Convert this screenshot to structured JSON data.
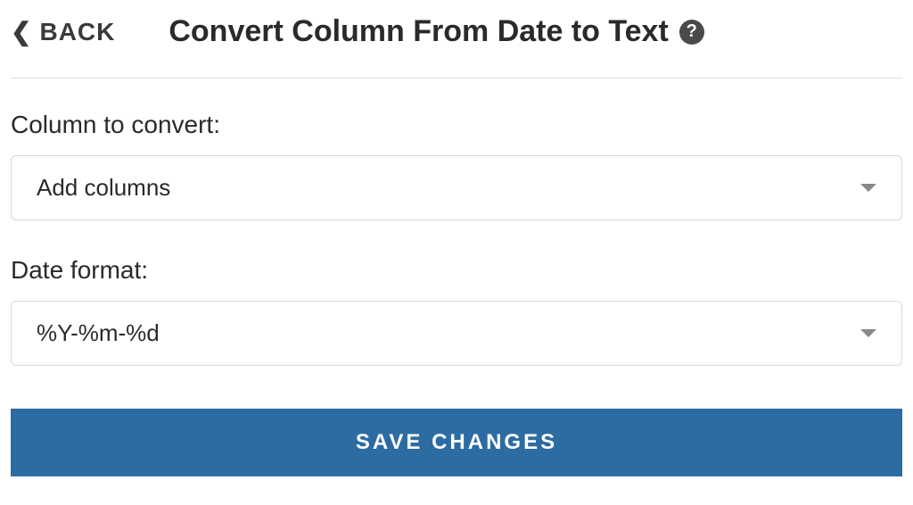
{
  "header": {
    "back_label": "BACK",
    "title": "Convert Column From Date to Text"
  },
  "fields": {
    "column": {
      "label": "Column to convert:",
      "value": "Add columns"
    },
    "date_format": {
      "label": "Date format:",
      "value": "%Y-%m-%d"
    }
  },
  "actions": {
    "save_label": "SAVE CHANGES"
  },
  "colors": {
    "primary_button": "#2d6ca2",
    "text": "#2a2a2a",
    "border": "#d8d8d8",
    "divider": "#e0e0e0",
    "caret": "#888888"
  }
}
